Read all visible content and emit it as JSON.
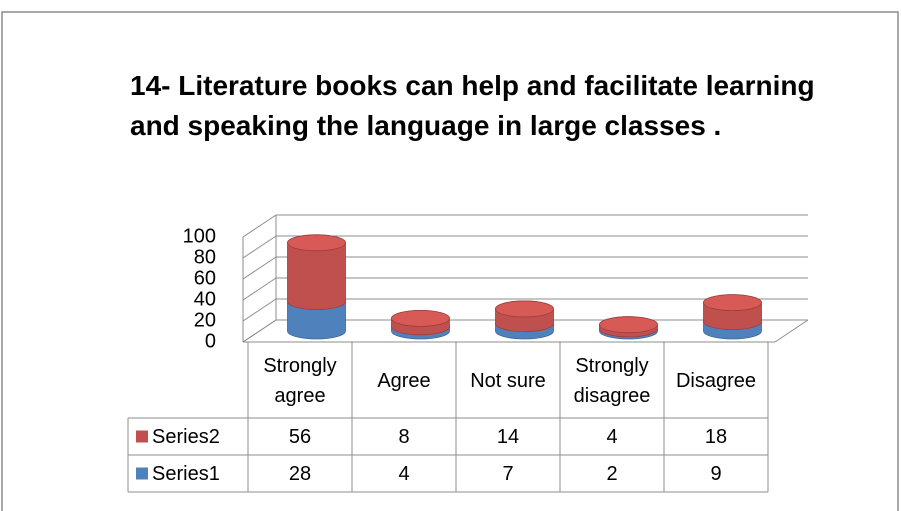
{
  "chart_data": {
    "type": "bar",
    "stacked": true,
    "title": "14- Literature books can help and facilitate learning and speaking the language in large classes .",
    "categories": [
      "Strongly agree",
      "Agree",
      "Not sure",
      "Strongly disagree",
      "Disagree"
    ],
    "series": [
      {
        "name": "Series1",
        "color": "#4f81bd",
        "values": [
          28,
          4,
          7,
          2,
          9
        ]
      },
      {
        "name": "Series2",
        "color": "#c0504d",
        "values": [
          56,
          8,
          14,
          4,
          18
        ]
      }
    ],
    "ylim": [
      0,
      100
    ],
    "yticks": [
      0,
      20,
      40,
      60,
      80,
      100
    ],
    "grid": true,
    "data_table": true
  }
}
